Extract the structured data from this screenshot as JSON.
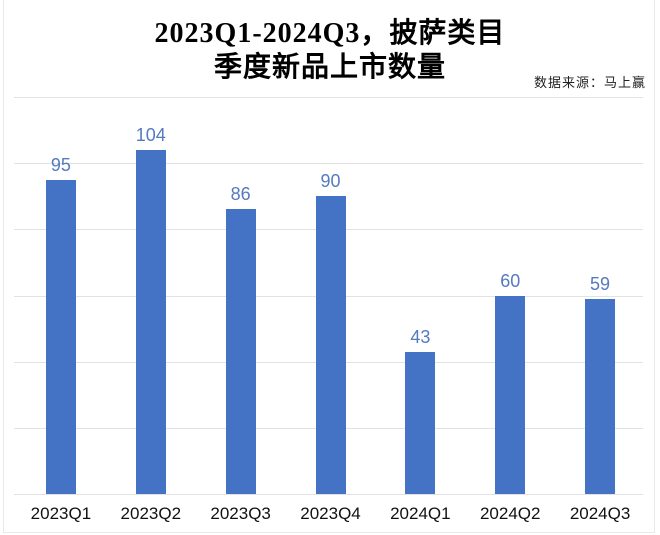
{
  "title": {
    "line1": "2023Q1-2024Q3，披萨类目",
    "line2": "季度新品上市数量"
  },
  "source_note": "数据来源：马上赢",
  "colors": {
    "bar": "#4472c4",
    "value_label": "#5579c2",
    "gridline": "#e2e2e2",
    "axis_label": "#111111",
    "frame_border": "#e9e9e9",
    "background": "#ffffff"
  },
  "chart_data": {
    "type": "bar",
    "title": "2023Q1-2024Q3，披萨类目 季度新品上市数量",
    "categories": [
      "2023Q1",
      "2023Q2",
      "2023Q3",
      "2023Q4",
      "2024Q1",
      "2024Q2",
      "2024Q3"
    ],
    "values": [
      95,
      104,
      86,
      90,
      43,
      60,
      59
    ],
    "xlabel": "",
    "ylabel": "",
    "ylim": [
      0,
      120
    ],
    "gridline_step": 20,
    "grid": true,
    "y_tick_labels_visible": false,
    "legend": "none",
    "data_labels": true,
    "bar_color": "#4472c4"
  }
}
